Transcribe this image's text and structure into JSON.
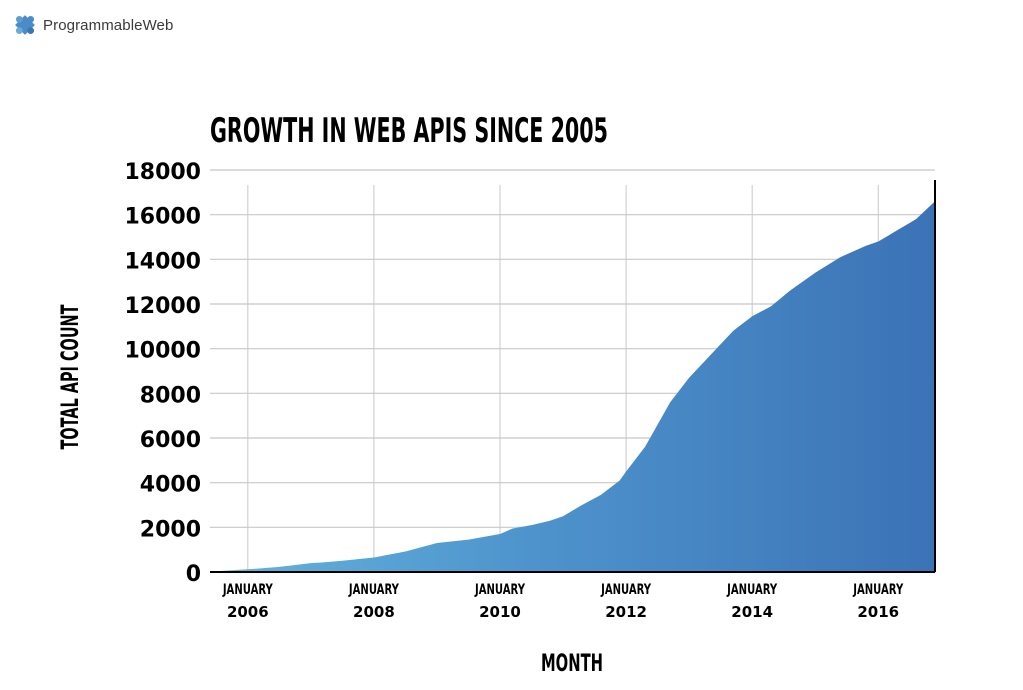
{
  "brand": {
    "name": "ProgrammableWeb",
    "icon": "puzzle-piece-icon"
  },
  "chart_data": {
    "type": "area",
    "title": "GROWTH IN WEB APIS SINCE 2005",
    "xlabel": "MONTH",
    "ylabel": "TOTAL API COUNT",
    "ylim": [
      0,
      18000
    ],
    "yticks": [
      0,
      2000,
      4000,
      6000,
      8000,
      10000,
      12000,
      14000,
      16000,
      18000
    ],
    "xlim": [
      2005.4,
      2016.9
    ],
    "xticks": [
      {
        "x": 2006,
        "line1": "JANUARY",
        "line2": "2006"
      },
      {
        "x": 2008,
        "line1": "JANUARY",
        "line2": "2008"
      },
      {
        "x": 2010,
        "line1": "JANUARY",
        "line2": "2010"
      },
      {
        "x": 2012,
        "line1": "JANUARY",
        "line2": "2012"
      },
      {
        "x": 2014,
        "line1": "JANUARY",
        "line2": "2014"
      },
      {
        "x": 2016,
        "line1": "JANUARY",
        "line2": "2016"
      }
    ],
    "grid": true,
    "series": [
      {
        "x": [
          2005.4,
          2006.0,
          2006.5,
          2007.0,
          2007.2,
          2007.5,
          2008.0,
          2008.5,
          2009.0,
          2009.5,
          2010.0,
          2010.2,
          2010.5,
          2010.8,
          2011.0,
          2011.3,
          2011.6,
          2011.9,
          2012.0,
          2012.3,
          2012.7,
          2013.0,
          2013.3,
          2013.7,
          2014.0,
          2014.3,
          2014.6,
          2015.0,
          2015.4,
          2015.8,
          2016.0,
          2016.3,
          2016.6,
          2016.9
        ],
        "y": [
          20,
          120,
          230,
          400,
          430,
          500,
          650,
          920,
          1300,
          1450,
          1700,
          1950,
          2100,
          2300,
          2500,
          3000,
          3450,
          4100,
          4500,
          5600,
          7600,
          8700,
          9600,
          10800,
          11450,
          11900,
          12600,
          13400,
          14100,
          14600,
          14800,
          15300,
          15800,
          16600
        ],
        "colors": {
          "light": "#62b4dd",
          "dark": "#3b73b6"
        }
      }
    ],
    "colors": {
      "grid": "#c8c8c8",
      "axis": "#000000",
      "text": "#111111"
    }
  }
}
